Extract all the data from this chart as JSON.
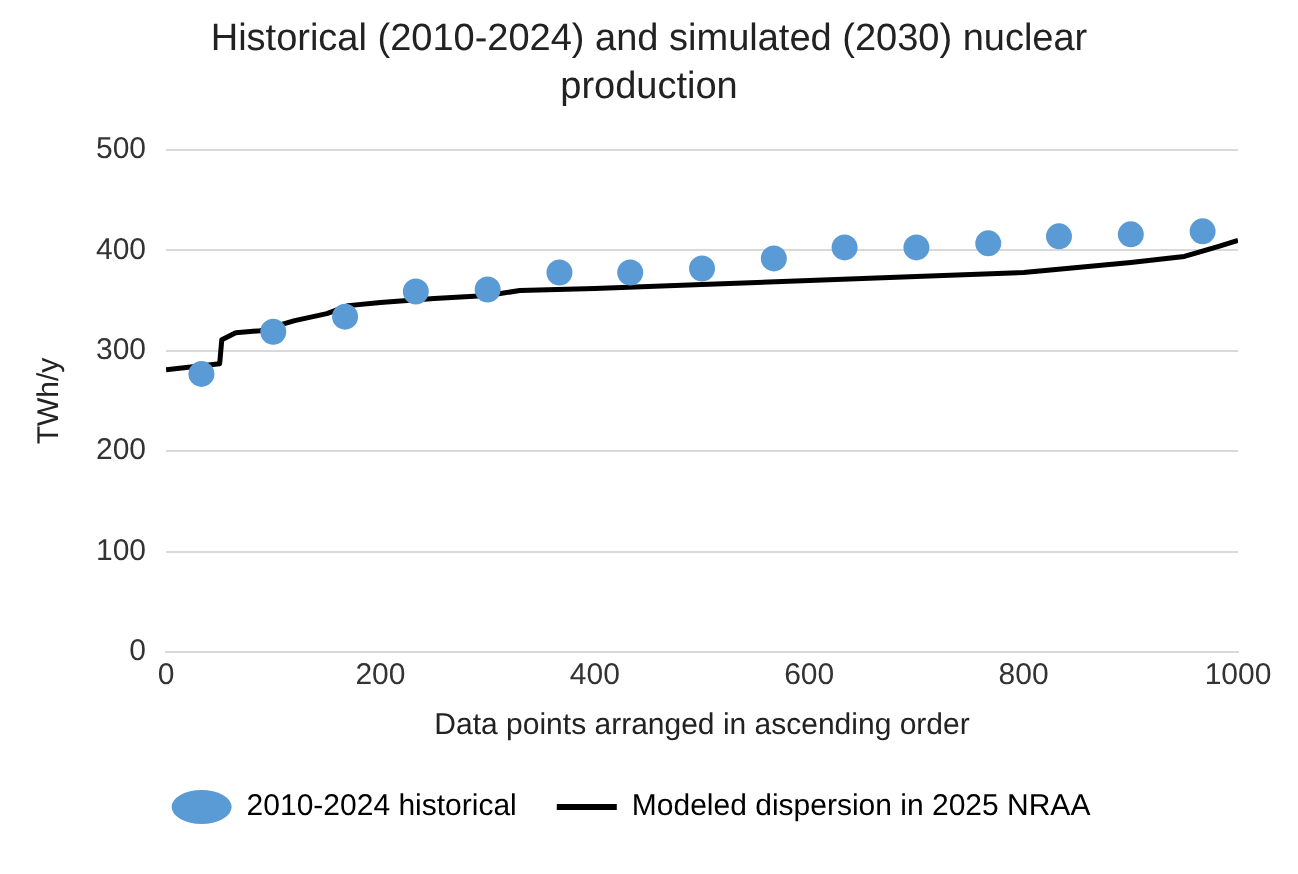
{
  "chart_data": {
    "type": "scatter",
    "title": "Historical (2010-2024) and simulated (2030) nuclear production",
    "xlabel": "Data points arranged in ascending order",
    "ylabel": "TWh/y",
    "xlim": [
      0,
      1000
    ],
    "xticks": [
      0,
      200,
      400,
      600,
      800,
      1000
    ],
    "ylim": [
      0,
      500
    ],
    "yticks": [
      0,
      100,
      200,
      300,
      400,
      500
    ],
    "grid": "y",
    "legend": "bottom",
    "marker": "circle",
    "series": [
      {
        "name": "2010-2024 historical",
        "type": "scatter",
        "color": "#5b9bd5",
        "x": [
          33,
          100,
          167,
          233,
          300,
          367,
          433,
          500,
          567,
          633,
          700,
          767,
          833,
          900,
          967
        ],
        "values": [
          277,
          319,
          334,
          359,
          361,
          378,
          378,
          382,
          392,
          403,
          403,
          407,
          414,
          416,
          419
        ]
      },
      {
        "name": "Modeled dispersion in 2025 NRAA",
        "type": "line",
        "color": "#000000",
        "line_style": "solid",
        "marker": "none",
        "x": [
          0,
          50,
          52,
          65,
          88,
          120,
          150,
          170,
          200,
          250,
          300,
          330,
          400,
          500,
          600,
          700,
          800,
          850,
          900,
          950,
          982,
          1000
        ],
        "values": [
          281,
          287,
          311,
          318,
          320,
          330,
          337,
          345,
          348,
          352,
          355,
          360,
          362,
          366,
          370,
          374,
          378,
          383,
          388,
          394,
          404,
          410
        ]
      }
    ]
  }
}
